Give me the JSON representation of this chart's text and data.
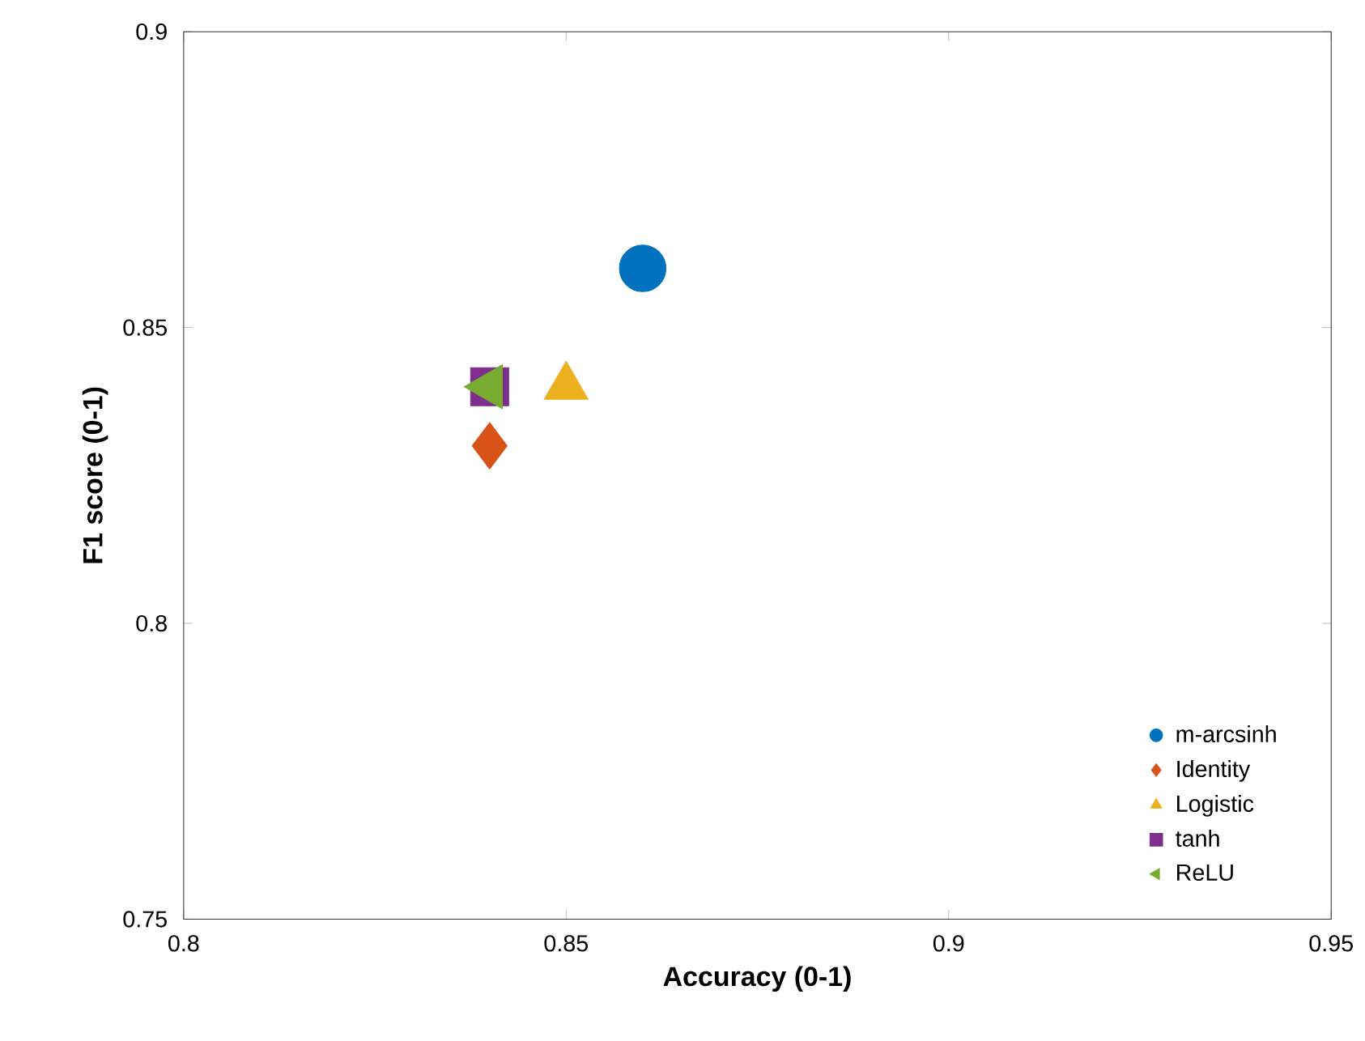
{
  "chart_data": {
    "type": "scatter",
    "xlabel": "Accuracy (0-1)",
    "ylabel": "F1 score (0-1)",
    "xlim": [
      0.8,
      0.95
    ],
    "xticks": [
      0.8,
      0.85,
      0.9,
      0.95
    ],
    "ylim": [
      0.75,
      0.9
    ],
    "yticks": [
      0.75,
      0.8,
      0.85,
      0.9
    ],
    "legend": "bottom right",
    "grid": false,
    "series": [
      {
        "name": "m-arcsinh",
        "color": "#0072bd",
        "marker": "circle",
        "x": [
          0.86
        ],
        "values": [
          0.86
        ]
      },
      {
        "name": "Identity",
        "color": "#d95319",
        "marker": "diamond",
        "x": [
          0.84
        ],
        "values": [
          0.83
        ]
      },
      {
        "name": "Logistic",
        "color": "#edb120",
        "marker": "triangle",
        "x": [
          0.85
        ],
        "values": [
          0.84
        ]
      },
      {
        "name": "tanh",
        "color": "#7e2f8e",
        "marker": "square",
        "x": [
          0.84
        ],
        "values": [
          0.84
        ]
      },
      {
        "name": "ReLU",
        "color": "#77ac30",
        "marker": "triangle-left",
        "x": [
          0.84
        ],
        "values": [
          0.84
        ]
      }
    ]
  }
}
